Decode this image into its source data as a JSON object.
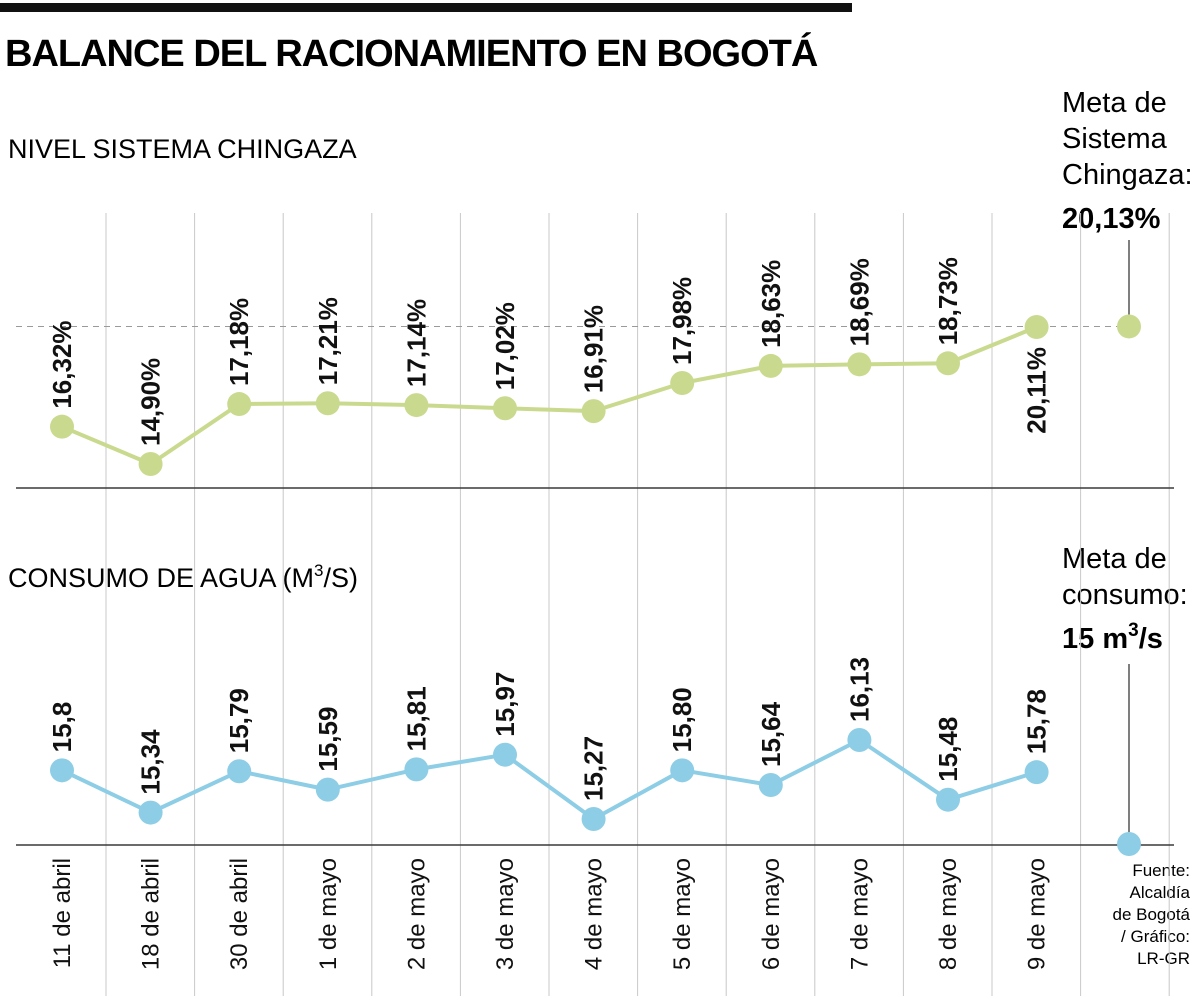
{
  "title": "BALANCE DEL RACIONAMIENTO EN BOGOTÁ",
  "colors": {
    "chingaza": "#c9da8f",
    "consumo": "#8dcde5",
    "axis": "#3a3a3a",
    "grid": "#c8c8c8",
    "text": "#111111"
  },
  "chart_data": [
    {
      "type": "line",
      "title": "NIVEL SISTEMA CHINGAZA",
      "categories": [
        "11 de abril",
        "18 de abril",
        "30 de abril",
        "1 de mayo",
        "2 de mayo",
        "3 de mayo",
        "4 de mayo",
        "5 de mayo",
        "6 de mayo",
        "7 de mayo",
        "8 de mayo",
        "9 de mayo"
      ],
      "values": [
        16.32,
        14.9,
        17.18,
        17.21,
        17.14,
        17.02,
        16.91,
        17.98,
        18.63,
        18.69,
        18.73,
        20.11
      ],
      "value_labels": [
        "16,32%",
        "14,90%",
        "17,18%",
        "17,21%",
        "17,14%",
        "17,02%",
        "16,91%",
        "17,98%",
        "18,63%",
        "18,69%",
        "18,73%",
        "20,11%"
      ],
      "target": {
        "value": 20.13,
        "label_lines": [
          "Meta de",
          "Sistema",
          "Chingaza:"
        ],
        "value_label": "20,13%"
      }
    },
    {
      "type": "line",
      "title_main": "CONSUMO DE AGUA (M",
      "title_sup": "3",
      "title_end": "/S)",
      "categories": [
        "11 de abril",
        "18 de abril",
        "30 de abril",
        "1 de mayo",
        "2 de mayo",
        "3 de mayo",
        "4 de mayo",
        "5 de mayo",
        "6 de mayo",
        "7 de mayo",
        "8 de mayo",
        "9 de mayo"
      ],
      "values": [
        15.8,
        15.34,
        15.79,
        15.59,
        15.81,
        15.97,
        15.27,
        15.8,
        15.64,
        16.13,
        15.48,
        15.78
      ],
      "value_labels": [
        "15,8",
        "15,34",
        "15,79",
        "15,59",
        "15,81",
        "15,97",
        "15,27",
        "15,80",
        "15,64",
        "16,13",
        "15,48",
        "15,78"
      ],
      "target": {
        "value": 15,
        "label_lines": [
          "Meta de",
          "consumo:"
        ],
        "value_label_main": "15 m",
        "value_label_sup": "3",
        "value_label_end": "/s"
      }
    }
  ],
  "source_lines": [
    "Fuente:",
    "Alcaldía",
    "de Bogotá",
    "/ Gráfico:",
    "LR-GR"
  ]
}
